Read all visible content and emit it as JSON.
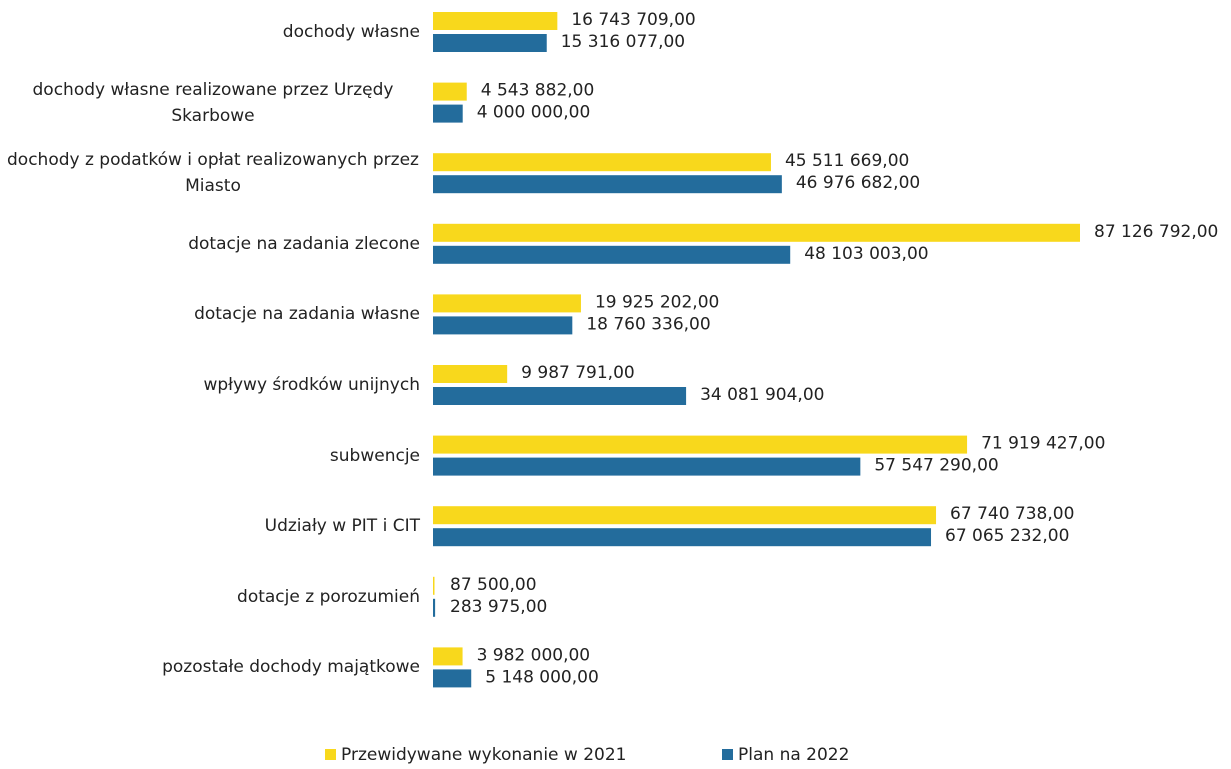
{
  "chart_data": {
    "type": "bar",
    "orientation": "horizontal",
    "categories": [
      "dochody własne",
      "dochody własne realizowane przez Urzędy Skarbowe",
      "dochody z podatków i opłat realizowanych przez Miasto",
      "dotacje na zadania zlecone",
      "dotacje na zadania własne",
      "wpływy środków unijnych",
      "subwencje",
      "Udziały w PIT i CIT",
      "dotacje z porozumień",
      "pozostałe dochody majątkowe"
    ],
    "series": [
      {
        "name": "Przewidywane wykonanie w 2021",
        "color": "#f8d81c",
        "values": [
          16743709,
          4543882,
          45511669,
          87126792,
          19925202,
          9987791,
          71919427,
          67740738,
          87500,
          3982000
        ],
        "value_labels": [
          "16 743 709,00",
          "4 543 882,00",
          "45 511 669,00",
          "87 126 792,00",
          "19 925 202,00",
          "9 987 791,00",
          "71 919 427,00",
          "67 740 738,00",
          "87 500,00",
          "3 982 000,00"
        ]
      },
      {
        "name": "Plan na 2022",
        "color": "#236c9c",
        "values": [
          15316077,
          4000000,
          46976682,
          48103003,
          18760336,
          34081904,
          57547290,
          67065232,
          283975,
          5148000
        ],
        "value_labels": [
          "15 316 077,00",
          "4 000 000,00",
          "46 976 682,00",
          "48 103 003,00",
          "18 760 336,00",
          "34 081 904,00",
          "57 547 290,00",
          "67 065 232,00",
          "283 975,00",
          "5 148 000,00"
        ]
      }
    ],
    "legend": "bottom"
  }
}
